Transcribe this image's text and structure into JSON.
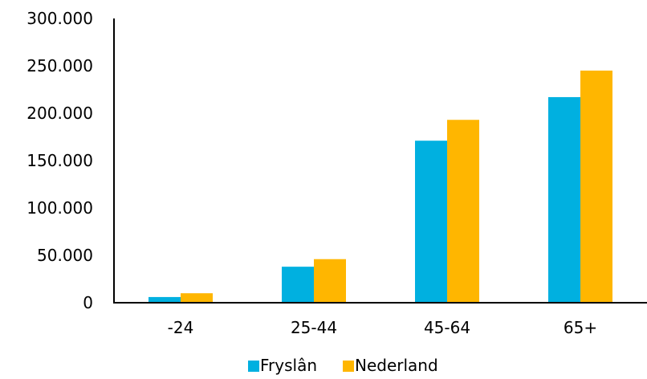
{
  "chart_data": {
    "type": "bar",
    "categories": [
      "-24",
      "25-44",
      "45-64",
      "65+"
    ],
    "series": [
      {
        "name": "Fryslân",
        "values": [
          6000,
          38000,
          171000,
          217000
        ],
        "color": "#00B0E0"
      },
      {
        "name": "Nederland",
        "values": [
          10000,
          46000,
          193000,
          245000
        ],
        "color": "#FFB600"
      }
    ],
    "ylim": [
      0,
      300000
    ],
    "yticks": [
      0,
      50000,
      100000,
      150000,
      200000,
      250000,
      300000
    ],
    "ytick_labels": [
      "0",
      "50.000",
      "100.000",
      "150.000",
      "200.000",
      "250.000",
      "300.000"
    ],
    "xlabel": "",
    "ylabel": "",
    "grid": false,
    "legend_position": "bottom"
  }
}
